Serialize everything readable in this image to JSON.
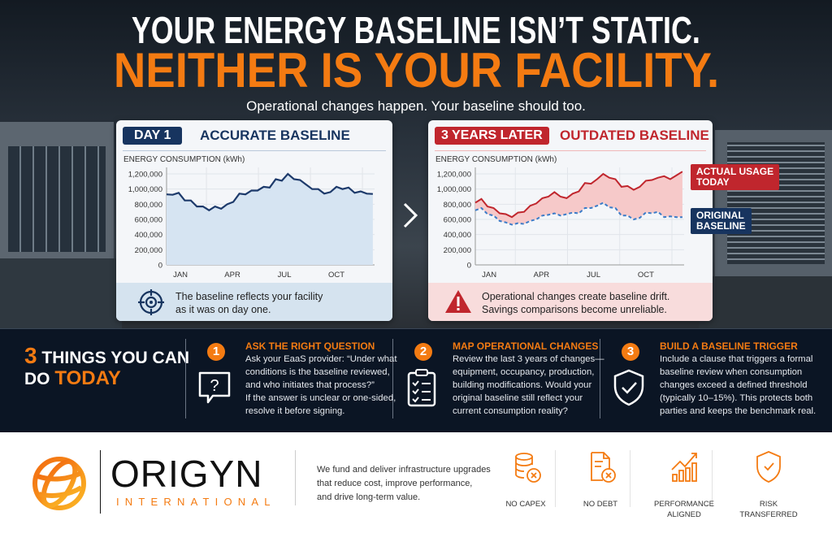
{
  "header": {
    "line1": "YOUR ENERGY BASELINE ISN’T STATIC.",
    "line2": "NEITHER IS YOUR FACILITY.",
    "subtitle": "Operational changes happen. Your baseline should too."
  },
  "left_card": {
    "badge": "DAY 1",
    "title": "ACCURATE BASELINE",
    "ylabel": "ENERGY CONSUMPTION (kWh)",
    "note_line1": "The baseline reflects your facility",
    "note_line2": "as it was on day one.",
    "icon": "target-icon",
    "color": "#17345f"
  },
  "right_card": {
    "badge": "3 YEARS LATER",
    "title": "OUTDATED BASELINE",
    "ylabel": "ENERGY CONSUMPTION (kWh)",
    "note_line1": "Operational changes create baseline drift.",
    "note_line2": "Savings comparisons become unreliable.",
    "icon": "warning-icon",
    "color": "#c0262d",
    "label_actual": [
      "ACTUAL USAGE",
      "TODAY"
    ],
    "label_original": [
      "ORIGINAL",
      "BASELINE"
    ]
  },
  "chart_data": [
    {
      "type": "area",
      "ylabel": "ENERGY CONSUMPTION (kWh)",
      "ylim": [
        0,
        1200000
      ],
      "yticks": [
        0,
        200000,
        400000,
        600000,
        800000,
        1000000,
        1200000
      ],
      "ytick_labels": [
        "0",
        "200,000",
        "400,000",
        "600,000",
        "800,000",
        "1,000,000",
        "1,200,000"
      ],
      "xlim": [
        0.2,
        12.2
      ],
      "xticks": [
        1,
        4,
        7,
        10
      ],
      "xtick_labels": [
        "JAN",
        "APR",
        "JUL",
        "OCT"
      ],
      "grid": true,
      "x": [
        0.2,
        0.55,
        0.9,
        1.25,
        1.6,
        1.95,
        2.3,
        2.65,
        3.0,
        3.35,
        3.7,
        4.05,
        4.4,
        4.75,
        5.1,
        5.45,
        5.8,
        6.15,
        6.5,
        6.85,
        7.2,
        7.55,
        7.9,
        8.25,
        8.6,
        8.95,
        9.3,
        9.65,
        10.0,
        10.35,
        10.7,
        11.05,
        11.4,
        11.75,
        12.1
      ],
      "series": [
        {
          "values": [
            930000,
            925000,
            950000,
            850000,
            850000,
            770000,
            770000,
            720000,
            770000,
            740000,
            800000,
            830000,
            940000,
            930000,
            980000,
            980000,
            1030000,
            1020000,
            1130000,
            1110000,
            1200000,
            1130000,
            1120000,
            1060000,
            1000000,
            1000000,
            940000,
            960000,
            1030000,
            1000000,
            1020000,
            950000,
            970000,
            940000,
            935000
          ],
          "color": "#1d3a6b",
          "fill": "#d6e4f2"
        }
      ]
    },
    {
      "type": "line",
      "ylabel": "ENERGY CONSUMPTION (kWh)",
      "ylim": [
        0,
        1200000
      ],
      "yticks": [
        0,
        200000,
        400000,
        600000,
        800000,
        1000000,
        1200000
      ],
      "ytick_labels": [
        "0",
        "200,000",
        "400,000",
        "600,000",
        "800,000",
        "1,000,000",
        "1,200,000"
      ],
      "xlim": [
        0.2,
        12.2
      ],
      "xticks": [
        1,
        4,
        7,
        10
      ],
      "xtick_labels": [
        "JAN",
        "APR",
        "JUL",
        "OCT"
      ],
      "grid": true,
      "x": [
        0.2,
        0.55,
        0.9,
        1.25,
        1.6,
        1.95,
        2.3,
        2.65,
        3.0,
        3.35,
        3.7,
        4.05,
        4.4,
        4.75,
        5.1,
        5.45,
        5.8,
        6.15,
        6.5,
        6.85,
        7.2,
        7.55,
        7.9,
        8.25,
        8.6,
        8.95,
        9.3,
        9.65,
        10.0,
        10.35,
        10.7,
        11.05,
        11.4,
        11.75,
        12.1
      ],
      "series": [
        {
          "name": "ACTUAL USAGE TODAY",
          "values": [
            820000,
            870000,
            770000,
            750000,
            680000,
            670000,
            630000,
            690000,
            700000,
            780000,
            810000,
            880000,
            900000,
            960000,
            900000,
            880000,
            940000,
            970000,
            1080000,
            1070000,
            1130000,
            1200000,
            1150000,
            1130000,
            1030000,
            1040000,
            990000,
            1030000,
            1110000,
            1120000,
            1150000,
            1170000,
            1130000,
            1180000,
            1230000
          ],
          "color": "#c0262d",
          "style": "solid"
        },
        {
          "name": "ORIGINAL BASELINE",
          "values": [
            720000,
            750000,
            670000,
            650000,
            580000,
            560000,
            530000,
            550000,
            540000,
            580000,
            600000,
            650000,
            660000,
            680000,
            650000,
            670000,
            690000,
            680000,
            750000,
            750000,
            780000,
            820000,
            760000,
            750000,
            650000,
            650000,
            600000,
            620000,
            690000,
            680000,
            700000,
            630000,
            640000,
            630000,
            630000
          ],
          "color": "#3a7bc8",
          "style": "dashed"
        }
      ],
      "gap_fill": "#f6c9c9"
    }
  ],
  "band": {
    "heading_num": "3",
    "heading_mid": "THINGS YOU CAN",
    "heading_do": "DO",
    "heading_today": "TODAY",
    "steps": [
      {
        "num": "1",
        "title": "ASK THE RIGHT QUESTION",
        "lines": [
          "Ask your EaaS provider: “Under what",
          "conditions is the baseline reviewed,",
          "and who initiates that process?”",
          "If the answer is unclear or one-sided,",
          "resolve it before signing."
        ],
        "icon": "question-bubble-icon"
      },
      {
        "num": "2",
        "title": "MAP OPERATIONAL CHANGES",
        "lines": [
          "Review the last 3 years of changes—",
          "equipment, occupancy, production,",
          "building modifications. Would your",
          "original baseline still reflect your",
          "current consumption reality?"
        ],
        "icon": "checklist-icon"
      },
      {
        "num": "3",
        "title": "BUILD A BASELINE TRIGGER",
        "lines": [
          "Include a clause that triggers a formal",
          "baseline review when consumption",
          "changes exceed a defined threshold",
          "(typically 10–15%). This protects both",
          "parties and keeps the benchmark real."
        ],
        "icon": "shield-check-icon"
      }
    ]
  },
  "footer": {
    "logo_name": "ORIGYN",
    "logo_sub": "INTERNATIONAL",
    "tagline": [
      "We fund and deliver infrastructure upgrades",
      "that reduce cost, improve performance,",
      "and drive long-term value."
    ],
    "features": [
      {
        "label": [
          "NO CAPEX"
        ],
        "icon": "coins-x-icon"
      },
      {
        "label": [
          "NO DEBT"
        ],
        "icon": "document-x-icon"
      },
      {
        "label": [
          "PERFORMANCE",
          "ALIGNED"
        ],
        "icon": "growth-chart-icon"
      },
      {
        "label": [
          "RISK",
          "TRANSFERRED"
        ],
        "icon": "shield-check-icon"
      }
    ],
    "accent": "#f47b12"
  }
}
